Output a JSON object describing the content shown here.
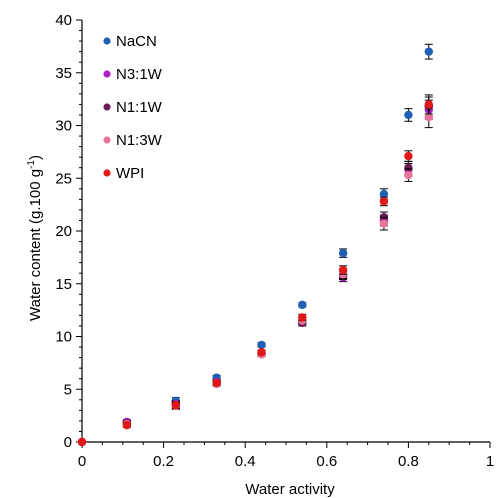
{
  "chart_data": {
    "type": "scatter",
    "xlabel": "Water activity",
    "ylabel_main": "Water content (g.100 g",
    "ylabel_sup": "-1",
    "ylabel_end": ")",
    "xlim": [
      0,
      1
    ],
    "ylim": [
      0,
      40
    ],
    "x_ticks": [
      "0",
      "0.2",
      "0.4",
      "0.6",
      "0.8",
      "1"
    ],
    "y_ticks": [
      "0",
      "5",
      "10",
      "15",
      "20",
      "25",
      "30",
      "35",
      "40"
    ],
    "grid": false,
    "legend_position": "top-left",
    "series": [
      {
        "name": "NaCN",
        "color": "#1f5fb4",
        "x": [
          0,
          0.11,
          0.23,
          0.33,
          0.44,
          0.54,
          0.64,
          0.74,
          0.8,
          0.85
        ],
        "y": [
          0,
          1.9,
          3.9,
          6.1,
          9.2,
          13.0,
          17.9,
          23.5,
          31.0,
          37.0
        ],
        "err": [
          0,
          0.2,
          0.3,
          0.2,
          0.2,
          0.2,
          0.4,
          0.5,
          0.6,
          0.7
        ]
      },
      {
        "name": "N3:1W",
        "color": "#b020c8",
        "x": [
          0,
          0.11,
          0.23,
          0.33,
          0.44,
          0.54,
          0.64,
          0.74,
          0.8,
          0.85
        ],
        "y": [
          0,
          1.9,
          3.6,
          5.7,
          8.5,
          11.3,
          15.6,
          21.0,
          25.8,
          31.5
        ],
        "err": [
          0,
          0.2,
          0.3,
          0.2,
          0.2,
          0.3,
          0.4,
          0.5,
          0.6,
          0.9
        ]
      },
      {
        "name": "N1:1W",
        "color": "#6e1a55",
        "x": [
          0,
          0.11,
          0.23,
          0.33,
          0.44,
          0.54,
          0.64,
          0.74,
          0.8,
          0.85
        ],
        "y": [
          0,
          1.8,
          3.5,
          5.6,
          8.4,
          11.3,
          15.8,
          21.3,
          26.0,
          31.8
        ],
        "err": [
          0,
          0.2,
          0.3,
          0.2,
          0.2,
          0.3,
          0.4,
          0.5,
          0.6,
          0.9
        ]
      },
      {
        "name": "N1:3W",
        "color": "#e8749c",
        "x": [
          0,
          0.11,
          0.23,
          0.33,
          0.44,
          0.54,
          0.64,
          0.74,
          0.8,
          0.85
        ],
        "y": [
          0,
          1.7,
          3.4,
          5.5,
          8.3,
          11.5,
          15.9,
          20.7,
          25.3,
          30.8
        ],
        "err": [
          0,
          0.2,
          0.3,
          0.2,
          0.2,
          0.3,
          0.4,
          0.6,
          0.6,
          1.0
        ]
      },
      {
        "name": "WPI",
        "color": "#e01818",
        "x": [
          0,
          0.11,
          0.23,
          0.33,
          0.44,
          0.54,
          0.64,
          0.74,
          0.8,
          0.85
        ],
        "y": [
          0,
          1.6,
          3.5,
          5.6,
          8.5,
          11.8,
          16.3,
          22.8,
          27.1,
          32.0
        ],
        "err": [
          0,
          0.2,
          0.3,
          0.2,
          0.2,
          0.3,
          0.4,
          0.4,
          0.5,
          0.9
        ]
      }
    ]
  }
}
